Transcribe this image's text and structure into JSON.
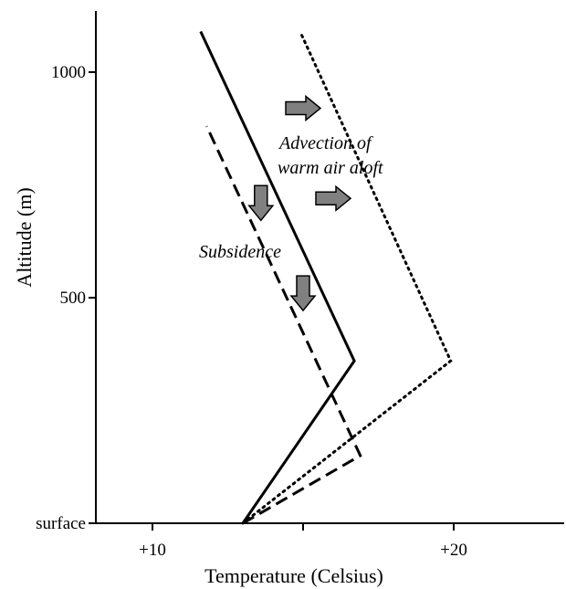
{
  "diagram": {
    "x_axis": {
      "title": "Temperature (Celsius)",
      "ticks": [
        {
          "value": 10,
          "label": "+10"
        },
        {
          "value": 15,
          "label": ""
        },
        {
          "value": 20,
          "label": "+20"
        }
      ]
    },
    "y_axis": {
      "title": "Altitude (m)",
      "ticks": [
        {
          "value": 0,
          "label": "surface"
        },
        {
          "value": 500,
          "label": "500"
        },
        {
          "value": 1000,
          "label": "1000"
        }
      ]
    },
    "annotations": {
      "advection_line1": "Advection of",
      "advection_line2": "warm air aloft",
      "subsidence": "Subsidence"
    },
    "profiles": [
      {
        "style": "solid",
        "points": [
          [
            13,
            0
          ],
          [
            16.7,
            360
          ],
          [
            11.6,
            1090
          ]
        ]
      },
      {
        "style": "dashed",
        "points": [
          [
            13,
            0
          ],
          [
            16.9,
            150
          ],
          [
            11.8,
            880
          ]
        ]
      },
      {
        "style": "dotted",
        "points": [
          [
            13,
            0
          ],
          [
            19.9,
            360
          ],
          [
            14.9,
            1090
          ]
        ]
      }
    ],
    "arrows": [
      {
        "direction": "right",
        "x": 15,
        "y": 920
      },
      {
        "direction": "right",
        "x": 16,
        "y": 720
      },
      {
        "direction": "down",
        "x": 13.6,
        "y": 710
      },
      {
        "direction": "down",
        "x": 15,
        "y": 510
      }
    ],
    "colors": {
      "arrow_fill": "#808080",
      "line": "#000000"
    }
  }
}
